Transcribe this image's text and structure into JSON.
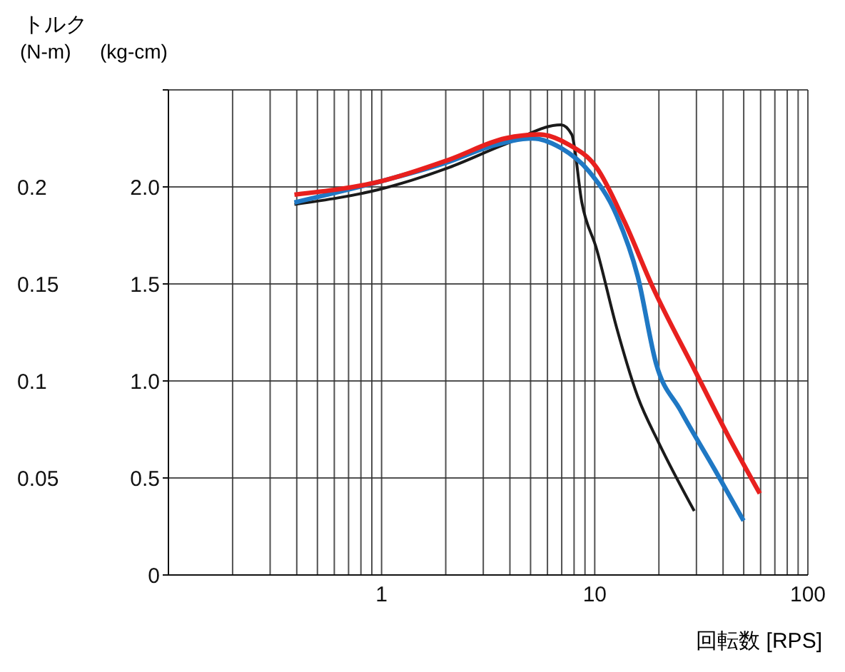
{
  "chart_data": {
    "type": "line",
    "xlabel": "回転数 [RPS]",
    "ylabel": "(kg-cm)",
    "y2label": "(N-m)",
    "annotations": [
      "トルク"
    ],
    "log": "x",
    "grid": true,
    "marker": "none",
    "line_style": "solid",
    "xlim": [
      0.1,
      100
    ],
    "xticks": [
      {
        "value": 0.1,
        "label": null
      },
      {
        "value": 0.2,
        "label": null
      },
      {
        "value": 0.3,
        "label": null
      },
      {
        "value": 0.4,
        "label": null
      },
      {
        "value": 0.5,
        "label": null
      },
      {
        "value": 0.6,
        "label": null
      },
      {
        "value": 0.7,
        "label": null
      },
      {
        "value": 0.8,
        "label": null
      },
      {
        "value": 0.9,
        "label": null
      },
      1,
      {
        "value": 2,
        "label": null
      },
      {
        "value": 3,
        "label": null
      },
      {
        "value": 4,
        "label": null
      },
      {
        "value": 5,
        "label": null
      },
      {
        "value": 6,
        "label": null
      },
      {
        "value": 7,
        "label": null
      },
      {
        "value": 8,
        "label": null
      },
      {
        "value": 9,
        "label": null
      },
      10,
      {
        "value": 20,
        "label": null
      },
      {
        "value": 30,
        "label": null
      },
      {
        "value": 40,
        "label": null
      },
      {
        "value": 50,
        "label": null
      },
      {
        "value": 60,
        "label": null
      },
      {
        "value": 70,
        "label": null
      },
      {
        "value": 80,
        "label": null
      },
      {
        "value": 90,
        "label": null
      },
      100
    ],
    "ylim": [
      0,
      2.5
    ],
    "yticks": [
      0,
      {
        "value": 0.5,
        "label": "0.5"
      },
      {
        "value": 1,
        "label": "1.0"
      },
      {
        "value": 1.5,
        "label": "1.5"
      },
      {
        "value": 2,
        "label": "2.0"
      },
      {
        "value": 2.5,
        "label": null
      }
    ],
    "y2lim": [
      0,
      0.25
    ],
    "y2ticks": [
      0.05,
      0.1,
      0.15,
      0.2
    ],
    "series": [
      {
        "color": "#1a1a1a",
        "x": [
          0.39,
          1,
          2.07,
          3.8,
          6.95,
          7.8,
          8.7,
          10.2,
          12.7,
          15.9,
          20,
          29.3
        ],
        "values": [
          1.91,
          1.99,
          2.1,
          2.22,
          2.32,
          2.27,
          1.92,
          1.68,
          1.27,
          0.92,
          0.68,
          0.33
        ]
      },
      {
        "color": "#1f78c4",
        "x": [
          0.39,
          1,
          2.07,
          3.26,
          5.1,
          6.95,
          9.4,
          12.7,
          15.9,
          19.4,
          25.2,
          36.7,
          49.9
        ],
        "values": [
          1.92,
          2.03,
          2.13,
          2.21,
          2.25,
          2.2,
          2.08,
          1.85,
          1.54,
          1.09,
          0.85,
          0.54,
          0.28
        ]
      },
      {
        "color": "#e8201e",
        "x": [
          0.39,
          1,
          2.07,
          3.8,
          5.5,
          7.5,
          10.2,
          13.8,
          18.6,
          29.3,
          42.6,
          59.5
        ],
        "values": [
          1.96,
          2.03,
          2.14,
          2.25,
          2.27,
          2.22,
          2.1,
          1.82,
          1.49,
          1.06,
          0.71,
          0.42
        ]
      }
    ]
  }
}
